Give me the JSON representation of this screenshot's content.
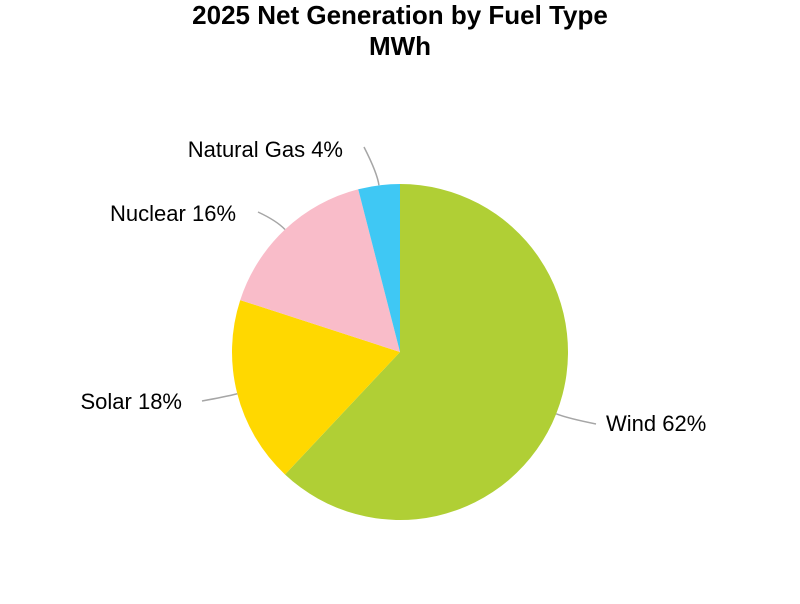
{
  "chart_data": {
    "type": "pie",
    "title": "2025 Net Generation by Fuel Type",
    "subtitle": "MWh",
    "unit": "%",
    "slices": [
      {
        "label": "Wind",
        "value": 62,
        "display": "Wind 62%",
        "color": "#b0cf35"
      },
      {
        "label": "Solar",
        "value": 18,
        "display": "Solar 18%",
        "color": "#ffd800"
      },
      {
        "label": "Nuclear",
        "value": 16,
        "display": "Nuclear 16%",
        "color": "#f9bcc9"
      },
      {
        "label": "Natural Gas",
        "value": 4,
        "display": "Natural Gas 4%",
        "color": "#3fc8f4"
      }
    ],
    "legend": "none",
    "leader_line_color": "#a6a6a6"
  }
}
